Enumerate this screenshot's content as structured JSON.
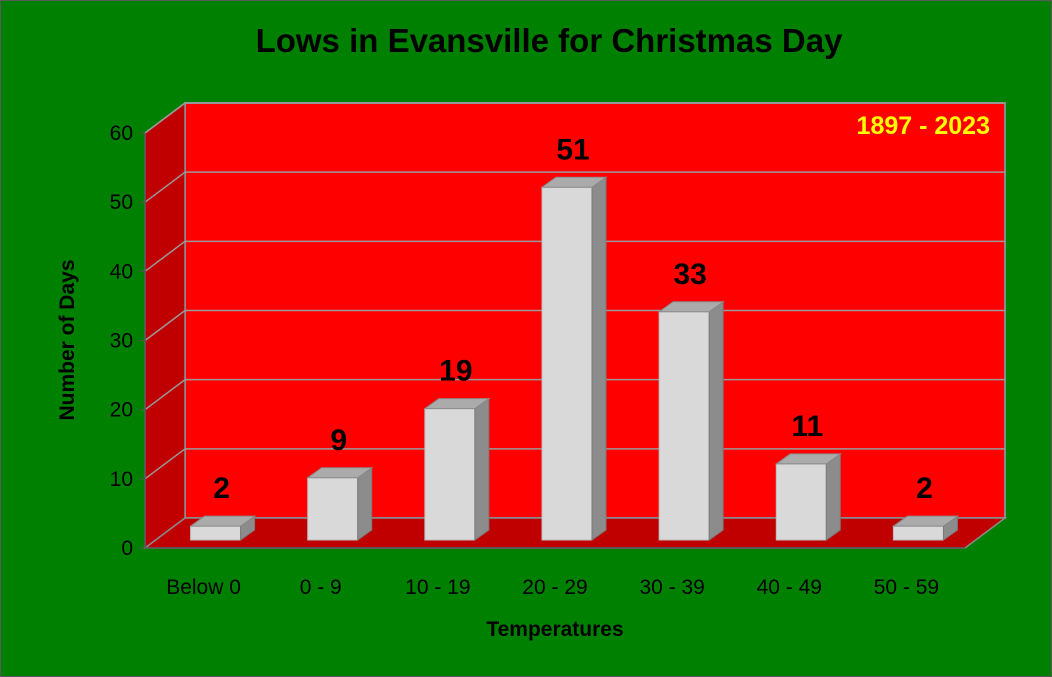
{
  "chart_data": {
    "type": "bar",
    "title": "Lows in Evansville for Christmas Day",
    "xlabel": "Temperatures",
    "ylabel": "Number of Days",
    "annotation": "1897 - 2023",
    "categories": [
      "Below 0",
      "0 - 9",
      "10 - 19",
      "20 - 29",
      "30 - 39",
      "40 - 49",
      "50 - 59"
    ],
    "values": [
      2,
      9,
      19,
      51,
      33,
      11,
      2
    ],
    "data_labels": [
      "2",
      "9",
      "19",
      "51",
      "33",
      "11",
      "2"
    ],
    "yticks": [
      "0",
      "10",
      "20",
      "30",
      "40",
      "50",
      "60"
    ],
    "ylim": [
      0,
      60
    ],
    "grid": true,
    "style": "3d-column",
    "colors": {
      "background": "#008000",
      "plot_wall": "#ff0000",
      "side_wall": "#c00000",
      "floor": "#c00000",
      "bar": "#d9d9d9",
      "annotation": "#ffff00"
    }
  }
}
